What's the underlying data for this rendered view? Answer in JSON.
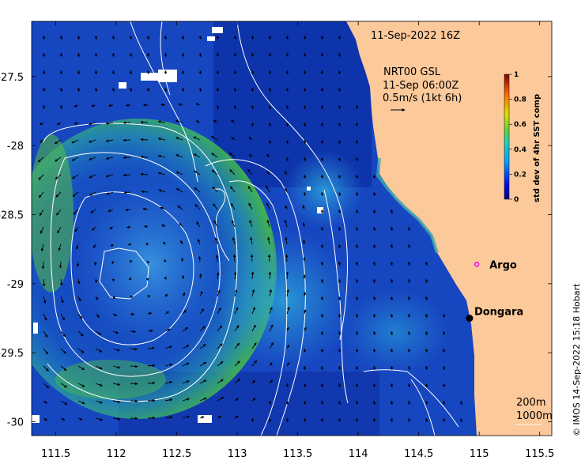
{
  "map": {
    "date_label": "11-Sep-2022 16Z",
    "current_info": {
      "line1": "NRT00 GSL",
      "line2": "11-Sep 06:00Z",
      "line3": "0.5m/s (1kt 6h)"
    },
    "lon_ticks": [
      "111.5",
      "112",
      "112.5",
      "113",
      "113.5",
      "114",
      "114.5",
      "115",
      "115.5"
    ],
    "lon_values": [
      111.5,
      112,
      112.5,
      113,
      113.5,
      114,
      114.5,
      115,
      115.5
    ],
    "lat_ticks": [
      "-27.5",
      "-28",
      "-28.5",
      "-29",
      "-29.5",
      "-30"
    ],
    "lat_values": [
      -27.5,
      -28,
      -28.5,
      -29,
      -29.5,
      -30
    ],
    "lon_range": [
      111.3,
      115.6
    ],
    "lat_range": [
      -30.1,
      -27.1
    ],
    "places": [
      {
        "name": "Argo",
        "lon": 114.98,
        "lat": -28.86,
        "marker": "ring",
        "color": "#e000e0"
      },
      {
        "name": "Dongara",
        "lon": 114.92,
        "lat": -29.25,
        "marker": "dot",
        "color": "#000000"
      }
    ],
    "depth_labels": {
      "line1": "200m",
      "line2": "1000m"
    },
    "credit": "© IMOS 14-Sep-2022 15:18 Hobart",
    "land_color": "#fcc99a"
  },
  "colorbar": {
    "title": "std dev of 4hr SST comp",
    "ticks": [
      "0",
      "0.2",
      "0.4",
      "0.6",
      "0.8",
      "1"
    ],
    "tick_values": [
      0,
      0.2,
      0.4,
      0.6,
      0.8,
      1
    ]
  }
}
